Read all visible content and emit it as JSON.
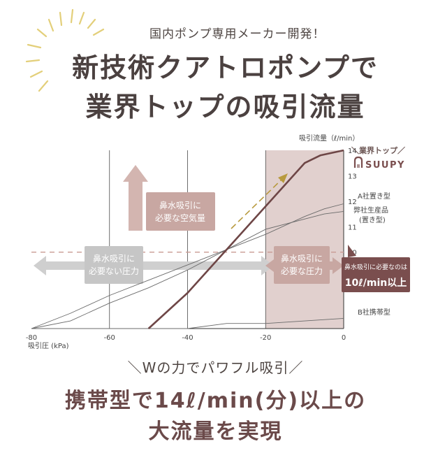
{
  "header": {
    "tagline": "国内ポンプ専用メーカー開発！",
    "headline_line1": "新技術クアトロポンプで",
    "headline_line2": "業界トップの吸引流量"
  },
  "sub_tagline": "＼Wの力でパワフル吸引／",
  "footer": {
    "line1": "携帯型で14ℓ/min(分)以上の",
    "line2": "大流量を実現"
  },
  "colors": {
    "accent_brown": "#7a4e4e",
    "band_pink": "#dcc8c5",
    "box_rose": "#c8a7a2",
    "box_grey": "#cfcfcf",
    "headline_text": "#4b4140",
    "burst_gold": "#e3cf7a"
  },
  "chart_data": {
    "type": "line",
    "ylabel": "吸引流量（ℓ/min）",
    "xlabel": "吸引圧 (kPa)",
    "xlim": [
      -80,
      0
    ],
    "ylim": [
      7,
      14
    ],
    "xticks": [
      "-80",
      "-60",
      "-40",
      "-20",
      "0"
    ],
    "xtick_values": [
      -80,
      -60,
      -40,
      -20,
      0
    ],
    "yticks": [
      "14",
      "13",
      "12",
      "11",
      "10"
    ],
    "ytick_values": [
      14,
      13,
      12,
      11,
      10
    ],
    "threshold": 10,
    "highlight_range": [
      -20,
      0
    ],
    "series": [
      {
        "name": "SUUPY",
        "x": [
          -50,
          -40,
          -30,
          -20,
          -10,
          -6,
          0
        ],
        "y": [
          7.0,
          8.4,
          10.1,
          11.8,
          13.5,
          13.8,
          14.0
        ]
      },
      {
        "name": "A社置き型",
        "x": [
          -80,
          -70,
          -60,
          -50,
          -40,
          -30,
          -20,
          -10,
          -5,
          0
        ],
        "y": [
          7.0,
          7.6,
          8.3,
          8.9,
          9.5,
          10.1,
          10.7,
          11.4,
          11.7,
          11.9
        ]
      },
      {
        "name": "弊社生産品（置き型）",
        "x": [
          -80,
          -70,
          -60,
          -50,
          -40,
          -30,
          -20,
          -10,
          -5,
          0
        ],
        "y": [
          7.0,
          7.3,
          8.0,
          8.6,
          9.3,
          10.1,
          10.9,
          11.3,
          11.5,
          11.6
        ]
      },
      {
        "name": "B社携帯型",
        "x": [
          -80,
          -60,
          -40,
          -30,
          -20,
          -10,
          0
        ],
        "y": [
          7.0,
          7.0,
          7.0,
          7.2,
          7.2,
          7.3,
          7.4
        ]
      }
    ],
    "legend": {
      "suupy_top": "＼業界トップ／",
      "suupy_brand": "SUUPY",
      "a_label": "A社置き型",
      "own_label_1": "弊社生産品",
      "own_label_2": "(置き型)",
      "b_label": "B社携帯型"
    },
    "annotations": {
      "airflow_line1": "鼻水吸引に",
      "airflow_line2": "必要な空気量",
      "no_pressure_line1": "鼻水吸引に",
      "no_pressure_line2": "必要ない圧力",
      "pressure_line1": "鼻水吸引に",
      "pressure_line2": "必要な圧力",
      "need_line1": "鼻水吸引に必要なのは",
      "need_line2": "10ℓ/min以上"
    }
  }
}
